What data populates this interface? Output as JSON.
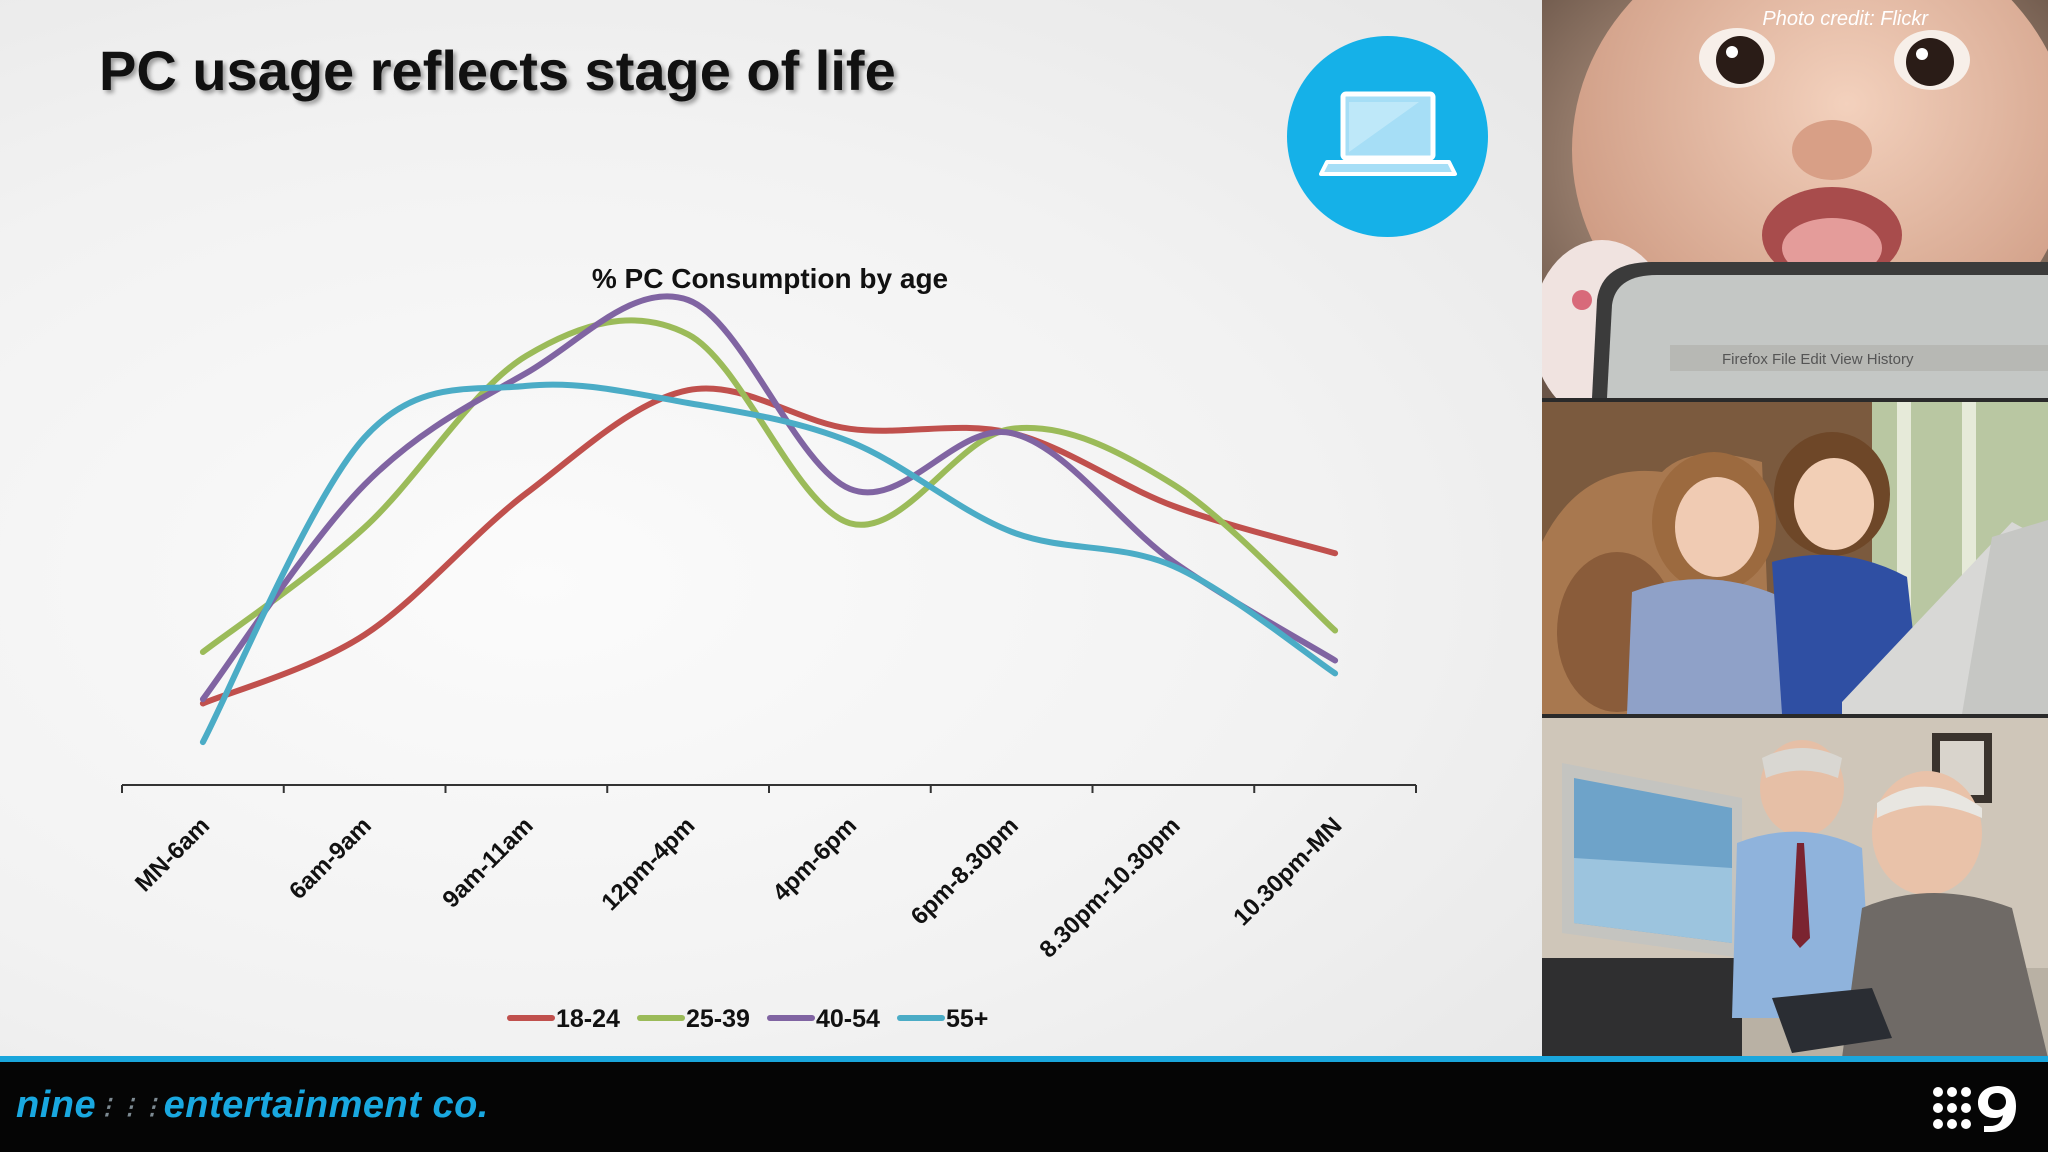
{
  "slide": {
    "title": "PC usage reflects stage of life",
    "photo_credit": "Photo credit: Flickr",
    "icon": "laptop-icon",
    "accent_color": "#15b1e8"
  },
  "footer": {
    "brand_left": "nine",
    "brand_right": "entertainment co.",
    "logo": "nine-network-logo"
  },
  "photos": [
    {
      "name": "baby-with-laptop-photo"
    },
    {
      "name": "girls-with-laptop-photo"
    },
    {
      "name": "seniors-at-computer-photo"
    }
  ],
  "chart_data": {
    "type": "line",
    "title": "% PC Consumption by age",
    "xlabel": "",
    "ylabel": "",
    "categories": [
      "MN-6am",
      "6am-9am",
      "9am-11am",
      "12pm-4pm",
      "4pm-6pm",
      "6pm-8.30pm",
      "8.30pm-10.30pm",
      "10.30pm-MN"
    ],
    "ylim": [
      0,
      12
    ],
    "y_axis_visible": false,
    "grid": false,
    "legend_position": "bottom",
    "series": [
      {
        "name": "18-24",
        "color": "#c0504d",
        "values": [
          1.9,
          3.5,
          6.8,
          9.2,
          8.3,
          8.2,
          6.5,
          5.4
        ]
      },
      {
        "name": "25-39",
        "color": "#9bbb59",
        "values": [
          3.1,
          6.0,
          10.0,
          10.5,
          6.1,
          8.3,
          7.0,
          3.6
        ]
      },
      {
        "name": "40-54",
        "color": "#8064a2",
        "values": [
          2.0,
          7.0,
          9.6,
          11.3,
          6.9,
          8.2,
          5.2,
          2.9
        ]
      },
      {
        "name": "55+",
        "color": "#4bacc6",
        "values": [
          1.0,
          8.1,
          9.3,
          8.9,
          8.0,
          5.9,
          5.1,
          2.6
        ]
      }
    ]
  }
}
